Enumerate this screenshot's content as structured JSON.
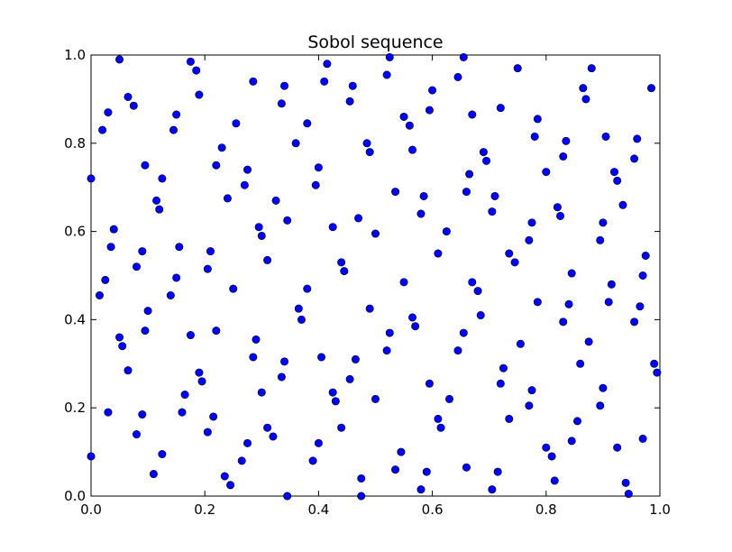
{
  "chart_data": {
    "type": "scatter",
    "title": "Sobol sequence",
    "xlabel": "",
    "ylabel": "",
    "xlim": [
      0.0,
      1.0
    ],
    "ylim": [
      0.0,
      1.0
    ],
    "x_ticks": [
      "0.0",
      "0.2",
      "0.4",
      "0.6",
      "0.8",
      "1.0"
    ],
    "y_ticks": [
      "0.0",
      "0.2",
      "0.4",
      "0.6",
      "0.8",
      "1.0"
    ],
    "grid": false,
    "marker_color": "#0000ff",
    "points": [
      [
        0.05,
        0.99
      ],
      [
        0.175,
        0.985
      ],
      [
        0.185,
        0.965
      ],
      [
        0.415,
        0.98
      ],
      [
        0.525,
        0.995
      ],
      [
        0.655,
        0.995
      ],
      [
        0.75,
        0.97
      ],
      [
        0.88,
        0.97
      ],
      [
        0.065,
        0.905
      ],
      [
        0.075,
        0.885
      ],
      [
        0.03,
        0.87
      ],
      [
        0.02,
        0.83
      ],
      [
        0.15,
        0.865
      ],
      [
        0.145,
        0.83
      ],
      [
        0.19,
        0.91
      ],
      [
        0.285,
        0.94
      ],
      [
        0.34,
        0.93
      ],
      [
        0.335,
        0.89
      ],
      [
        0.41,
        0.94
      ],
      [
        0.46,
        0.93
      ],
      [
        0.455,
        0.895
      ],
      [
        0.52,
        0.955
      ],
      [
        0.6,
        0.92
      ],
      [
        0.645,
        0.95
      ],
      [
        0.595,
        0.875
      ],
      [
        0.55,
        0.86
      ],
      [
        0.56,
        0.84
      ],
      [
        0.67,
        0.865
      ],
      [
        0.72,
        0.88
      ],
      [
        0.785,
        0.855
      ],
      [
        0.865,
        0.925
      ],
      [
        0.87,
        0.9
      ],
      [
        0.985,
        0.925
      ],
      [
        0.0,
        0.72
      ],
      [
        0.095,
        0.75
      ],
      [
        0.125,
        0.72
      ],
      [
        0.115,
        0.67
      ],
      [
        0.12,
        0.65
      ],
      [
        0.23,
        0.79
      ],
      [
        0.22,
        0.75
      ],
      [
        0.255,
        0.845
      ],
      [
        0.275,
        0.74
      ],
      [
        0.27,
        0.705
      ],
      [
        0.24,
        0.675
      ],
      [
        0.36,
        0.8
      ],
      [
        0.38,
        0.845
      ],
      [
        0.395,
        0.705
      ],
      [
        0.4,
        0.745
      ],
      [
        0.325,
        0.67
      ],
      [
        0.345,
        0.625
      ],
      [
        0.485,
        0.8
      ],
      [
        0.49,
        0.78
      ],
      [
        0.565,
        0.785
      ],
      [
        0.535,
        0.69
      ],
      [
        0.58,
        0.64
      ],
      [
        0.585,
        0.68
      ],
      [
        0.69,
        0.78
      ],
      [
        0.695,
        0.76
      ],
      [
        0.665,
        0.73
      ],
      [
        0.66,
        0.69
      ],
      [
        0.71,
        0.68
      ],
      [
        0.705,
        0.645
      ],
      [
        0.78,
        0.815
      ],
      [
        0.8,
        0.735
      ],
      [
        0.835,
        0.805
      ],
      [
        0.83,
        0.77
      ],
      [
        0.905,
        0.815
      ],
      [
        0.92,
        0.735
      ],
      [
        0.925,
        0.715
      ],
      [
        0.935,
        0.66
      ],
      [
        0.955,
        0.765
      ],
      [
        0.96,
        0.81
      ],
      [
        0.04,
        0.605
      ],
      [
        0.035,
        0.565
      ],
      [
        0.025,
        0.49
      ],
      [
        0.015,
        0.455
      ],
      [
        0.09,
        0.555
      ],
      [
        0.08,
        0.52
      ],
      [
        0.155,
        0.565
      ],
      [
        0.15,
        0.495
      ],
      [
        0.14,
        0.455
      ],
      [
        0.21,
        0.555
      ],
      [
        0.205,
        0.515
      ],
      [
        0.25,
        0.47
      ],
      [
        0.295,
        0.61
      ],
      [
        0.3,
        0.59
      ],
      [
        0.31,
        0.535
      ],
      [
        0.425,
        0.61
      ],
      [
        0.47,
        0.63
      ],
      [
        0.5,
        0.595
      ],
      [
        0.44,
        0.53
      ],
      [
        0.445,
        0.51
      ],
      [
        0.55,
        0.485
      ],
      [
        0.61,
        0.55
      ],
      [
        0.625,
        0.6
      ],
      [
        0.67,
        0.485
      ],
      [
        0.68,
        0.465
      ],
      [
        0.735,
        0.55
      ],
      [
        0.745,
        0.53
      ],
      [
        0.77,
        0.58
      ],
      [
        0.775,
        0.62
      ],
      [
        0.82,
        0.655
      ],
      [
        0.825,
        0.635
      ],
      [
        0.845,
        0.505
      ],
      [
        0.895,
        0.58
      ],
      [
        0.9,
        0.62
      ],
      [
        0.91,
        0.44
      ],
      [
        0.915,
        0.48
      ],
      [
        0.965,
        0.43
      ],
      [
        0.97,
        0.5
      ],
      [
        0.975,
        0.545
      ],
      [
        0.955,
        0.395
      ],
      [
        0.05,
        0.36
      ],
      [
        0.055,
        0.34
      ],
      [
        0.1,
        0.42
      ],
      [
        0.095,
        0.375
      ],
      [
        0.065,
        0.285
      ],
      [
        0.03,
        0.19
      ],
      [
        0.175,
        0.365
      ],
      [
        0.22,
        0.375
      ],
      [
        0.19,
        0.28
      ],
      [
        0.195,
        0.26
      ],
      [
        0.165,
        0.23
      ],
      [
        0.16,
        0.19
      ],
      [
        0.09,
        0.185
      ],
      [
        0.08,
        0.14
      ],
      [
        0.205,
        0.145
      ],
      [
        0.215,
        0.18
      ],
      [
        0.29,
        0.355
      ],
      [
        0.285,
        0.315
      ],
      [
        0.3,
        0.235
      ],
      [
        0.335,
        0.27
      ],
      [
        0.34,
        0.305
      ],
      [
        0.365,
        0.425
      ],
      [
        0.37,
        0.4
      ],
      [
        0.38,
        0.47
      ],
      [
        0.405,
        0.315
      ],
      [
        0.425,
        0.235
      ],
      [
        0.43,
        0.215
      ],
      [
        0.455,
        0.265
      ],
      [
        0.465,
        0.31
      ],
      [
        0.49,
        0.425
      ],
      [
        0.52,
        0.33
      ],
      [
        0.525,
        0.37
      ],
      [
        0.565,
        0.405
      ],
      [
        0.57,
        0.385
      ],
      [
        0.5,
        0.22
      ],
      [
        0.595,
        0.255
      ],
      [
        0.63,
        0.22
      ],
      [
        0.645,
        0.33
      ],
      [
        0.655,
        0.37
      ],
      [
        0.685,
        0.41
      ],
      [
        0.72,
        0.255
      ],
      [
        0.725,
        0.29
      ],
      [
        0.755,
        0.345
      ],
      [
        0.77,
        0.205
      ],
      [
        0.775,
        0.24
      ],
      [
        0.785,
        0.44
      ],
      [
        0.84,
        0.435
      ],
      [
        0.83,
        0.395
      ],
      [
        0.855,
        0.17
      ],
      [
        0.86,
        0.3
      ],
      [
        0.875,
        0.35
      ],
      [
        0.895,
        0.205
      ],
      [
        0.9,
        0.245
      ],
      [
        0.99,
        0.3
      ],
      [
        0.995,
        0.28
      ],
      [
        0.97,
        0.13
      ],
      [
        0.0,
        0.09
      ],
      [
        0.11,
        0.05
      ],
      [
        0.125,
        0.095
      ],
      [
        0.235,
        0.045
      ],
      [
        0.245,
        0.025
      ],
      [
        0.265,
        0.08
      ],
      [
        0.275,
        0.12
      ],
      [
        0.31,
        0.155
      ],
      [
        0.32,
        0.135
      ],
      [
        0.345,
        0.0
      ],
      [
        0.39,
        0.08
      ],
      [
        0.4,
        0.12
      ],
      [
        0.44,
        0.155
      ],
      [
        0.475,
        0.04
      ],
      [
        0.475,
        0.0
      ],
      [
        0.535,
        0.06
      ],
      [
        0.545,
        0.1
      ],
      [
        0.58,
        0.015
      ],
      [
        0.59,
        0.055
      ],
      [
        0.61,
        0.175
      ],
      [
        0.615,
        0.155
      ],
      [
        0.66,
        0.065
      ],
      [
        0.705,
        0.015
      ],
      [
        0.715,
        0.055
      ],
      [
        0.735,
        0.175
      ],
      [
        0.8,
        0.11
      ],
      [
        0.81,
        0.09
      ],
      [
        0.815,
        0.035
      ],
      [
        0.845,
        0.125
      ],
      [
        0.925,
        0.11
      ],
      [
        0.94,
        0.03
      ],
      [
        0.945,
        0.005
      ]
    ]
  }
}
